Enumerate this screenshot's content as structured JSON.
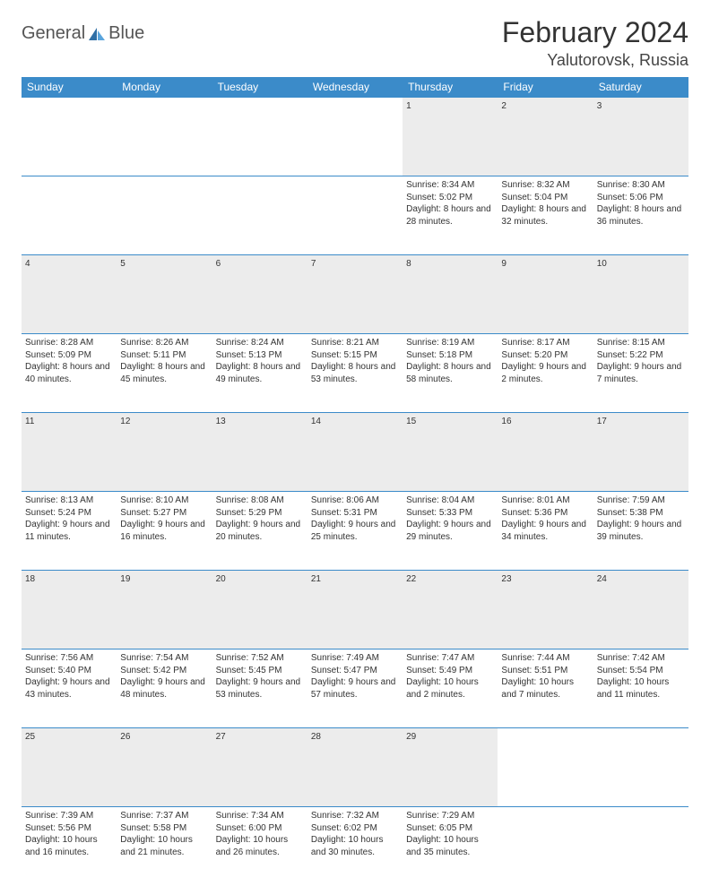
{
  "logo": {
    "text1": "General",
    "text2": "Blue",
    "brand_color": "#3b8bc9"
  },
  "title": "February 2024",
  "location": "Yalutorovsk, Russia",
  "colors": {
    "header_bg": "#3b8bc9",
    "header_fg": "#ffffff",
    "daynum_bg": "#ececec",
    "border": "#3b8bc9",
    "text": "#333333"
  },
  "daynames": [
    "Sunday",
    "Monday",
    "Tuesday",
    "Wednesday",
    "Thursday",
    "Friday",
    "Saturday"
  ],
  "weeks": [
    [
      null,
      null,
      null,
      null,
      {
        "n": "1",
        "sr": "8:34 AM",
        "ss": "5:02 PM",
        "dl": "8 hours and 28 minutes."
      },
      {
        "n": "2",
        "sr": "8:32 AM",
        "ss": "5:04 PM",
        "dl": "8 hours and 32 minutes."
      },
      {
        "n": "3",
        "sr": "8:30 AM",
        "ss": "5:06 PM",
        "dl": "8 hours and 36 minutes."
      }
    ],
    [
      {
        "n": "4",
        "sr": "8:28 AM",
        "ss": "5:09 PM",
        "dl": "8 hours and 40 minutes."
      },
      {
        "n": "5",
        "sr": "8:26 AM",
        "ss": "5:11 PM",
        "dl": "8 hours and 45 minutes."
      },
      {
        "n": "6",
        "sr": "8:24 AM",
        "ss": "5:13 PM",
        "dl": "8 hours and 49 minutes."
      },
      {
        "n": "7",
        "sr": "8:21 AM",
        "ss": "5:15 PM",
        "dl": "8 hours and 53 minutes."
      },
      {
        "n": "8",
        "sr": "8:19 AM",
        "ss": "5:18 PM",
        "dl": "8 hours and 58 minutes."
      },
      {
        "n": "9",
        "sr": "8:17 AM",
        "ss": "5:20 PM",
        "dl": "9 hours and 2 minutes."
      },
      {
        "n": "10",
        "sr": "8:15 AM",
        "ss": "5:22 PM",
        "dl": "9 hours and 7 minutes."
      }
    ],
    [
      {
        "n": "11",
        "sr": "8:13 AM",
        "ss": "5:24 PM",
        "dl": "9 hours and 11 minutes."
      },
      {
        "n": "12",
        "sr": "8:10 AM",
        "ss": "5:27 PM",
        "dl": "9 hours and 16 minutes."
      },
      {
        "n": "13",
        "sr": "8:08 AM",
        "ss": "5:29 PM",
        "dl": "9 hours and 20 minutes."
      },
      {
        "n": "14",
        "sr": "8:06 AM",
        "ss": "5:31 PM",
        "dl": "9 hours and 25 minutes."
      },
      {
        "n": "15",
        "sr": "8:04 AM",
        "ss": "5:33 PM",
        "dl": "9 hours and 29 minutes."
      },
      {
        "n": "16",
        "sr": "8:01 AM",
        "ss": "5:36 PM",
        "dl": "9 hours and 34 minutes."
      },
      {
        "n": "17",
        "sr": "7:59 AM",
        "ss": "5:38 PM",
        "dl": "9 hours and 39 minutes."
      }
    ],
    [
      {
        "n": "18",
        "sr": "7:56 AM",
        "ss": "5:40 PM",
        "dl": "9 hours and 43 minutes."
      },
      {
        "n": "19",
        "sr": "7:54 AM",
        "ss": "5:42 PM",
        "dl": "9 hours and 48 minutes."
      },
      {
        "n": "20",
        "sr": "7:52 AM",
        "ss": "5:45 PM",
        "dl": "9 hours and 53 minutes."
      },
      {
        "n": "21",
        "sr": "7:49 AM",
        "ss": "5:47 PM",
        "dl": "9 hours and 57 minutes."
      },
      {
        "n": "22",
        "sr": "7:47 AM",
        "ss": "5:49 PM",
        "dl": "10 hours and 2 minutes."
      },
      {
        "n": "23",
        "sr": "7:44 AM",
        "ss": "5:51 PM",
        "dl": "10 hours and 7 minutes."
      },
      {
        "n": "24",
        "sr": "7:42 AM",
        "ss": "5:54 PM",
        "dl": "10 hours and 11 minutes."
      }
    ],
    [
      {
        "n": "25",
        "sr": "7:39 AM",
        "ss": "5:56 PM",
        "dl": "10 hours and 16 minutes."
      },
      {
        "n": "26",
        "sr": "7:37 AM",
        "ss": "5:58 PM",
        "dl": "10 hours and 21 minutes."
      },
      {
        "n": "27",
        "sr": "7:34 AM",
        "ss": "6:00 PM",
        "dl": "10 hours and 26 minutes."
      },
      {
        "n": "28",
        "sr": "7:32 AM",
        "ss": "6:02 PM",
        "dl": "10 hours and 30 minutes."
      },
      {
        "n": "29",
        "sr": "7:29 AM",
        "ss": "6:05 PM",
        "dl": "10 hours and 35 minutes."
      },
      null,
      null
    ]
  ],
  "labels": {
    "sunrise": "Sunrise: ",
    "sunset": "Sunset: ",
    "daylight": "Daylight: "
  }
}
